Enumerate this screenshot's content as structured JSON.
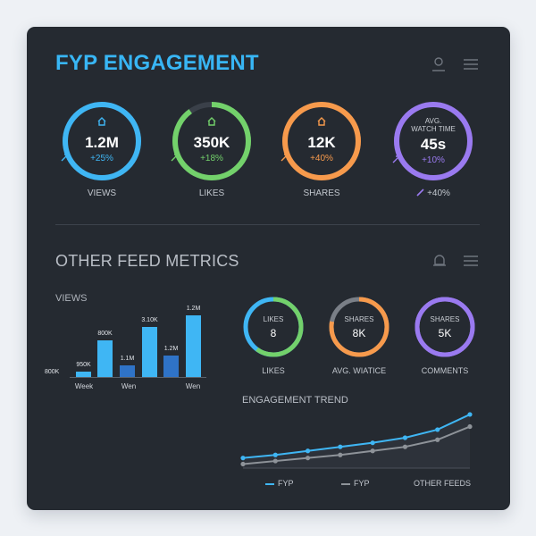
{
  "header": {
    "title": "FYP ENGAGEMENT",
    "user_icon": "user-icon",
    "menu_icon": "hamburger-menu-icon"
  },
  "kpis": [
    {
      "caption": "VIEWS",
      "value": "1.2M",
      "delta": "+25%",
      "color": "#3fb6f4",
      "icon": "home-icon",
      "progress": 1.0
    },
    {
      "caption": "LIKES",
      "value": "350K",
      "delta": "+18%",
      "color": "#73d16b",
      "icon": "home-icon",
      "progress": 0.9
    },
    {
      "caption": "SHARES",
      "value": "12K",
      "delta": "+40%",
      "color": "#f79a4c",
      "icon": "home-icon",
      "progress": 1.0
    },
    {
      "caption": "",
      "sublabel_line1": "AVG.",
      "sublabel_line2": "WATCH TIME",
      "value": "45s",
      "delta": "+10%",
      "outer_delta": "+40%",
      "color": "#9a7af0",
      "icon": "trend-icon",
      "progress": 1.0
    }
  ],
  "other": {
    "title": "OTHER FEED METRICS",
    "bell_icon": "bell-icon",
    "menu_icon": "hamburger-menu-icon"
  },
  "views_chart": {
    "title": "VIEWS",
    "bars": [
      {
        "label": "950K",
        "color": "#3fb6f4",
        "fraction": 0.08
      },
      {
        "label": "800K",
        "color": "#3fb6f4",
        "fraction": 0.55
      },
      {
        "label": "1.1M",
        "color": "#2f73c7",
        "fraction": 0.18
      },
      {
        "label": "3.10K",
        "color": "#3fb6f4",
        "fraction": 0.75
      },
      {
        "label": "1.2M",
        "color": "#2f73c7",
        "fraction": 0.32
      },
      {
        "label": "1.2M",
        "color": "#3fb6f4",
        "fraction": 0.92
      }
    ],
    "baseline_label": "800K",
    "x_labels": [
      "Week",
      "Wen",
      "Wen"
    ]
  },
  "mini_metrics": [
    {
      "top": "LIKES",
      "value": "8",
      "caption": "LIKES",
      "color": "#73d16b",
      "track": "#3fb6f4",
      "progress": 0.6
    },
    {
      "top": "SHARES",
      "value": "8K",
      "caption": "AVG. WIATICE",
      "color": "#f79a4c",
      "track": "#7a7f87",
      "progress": 0.78
    },
    {
      "top": "SHARES",
      "value": "5K",
      "caption": "COMMENTS",
      "color": "#9a7af0",
      "track": "#9a7af0",
      "progress": 1.0
    }
  ],
  "trend": {
    "title": "ENGAGEMENT TREND",
    "series": [
      {
        "name": "FYP",
        "color": "#3fb6f4",
        "values": [
          10,
          13,
          17,
          21,
          25,
          30,
          38,
          53
        ]
      },
      {
        "name": "FYP",
        "color": "#8e9399",
        "values": [
          4,
          7,
          10,
          13,
          17,
          21,
          28,
          41
        ]
      }
    ],
    "legend_extra": "OTHER FEEDS",
    "ylim": [
      0,
      60
    ]
  }
}
